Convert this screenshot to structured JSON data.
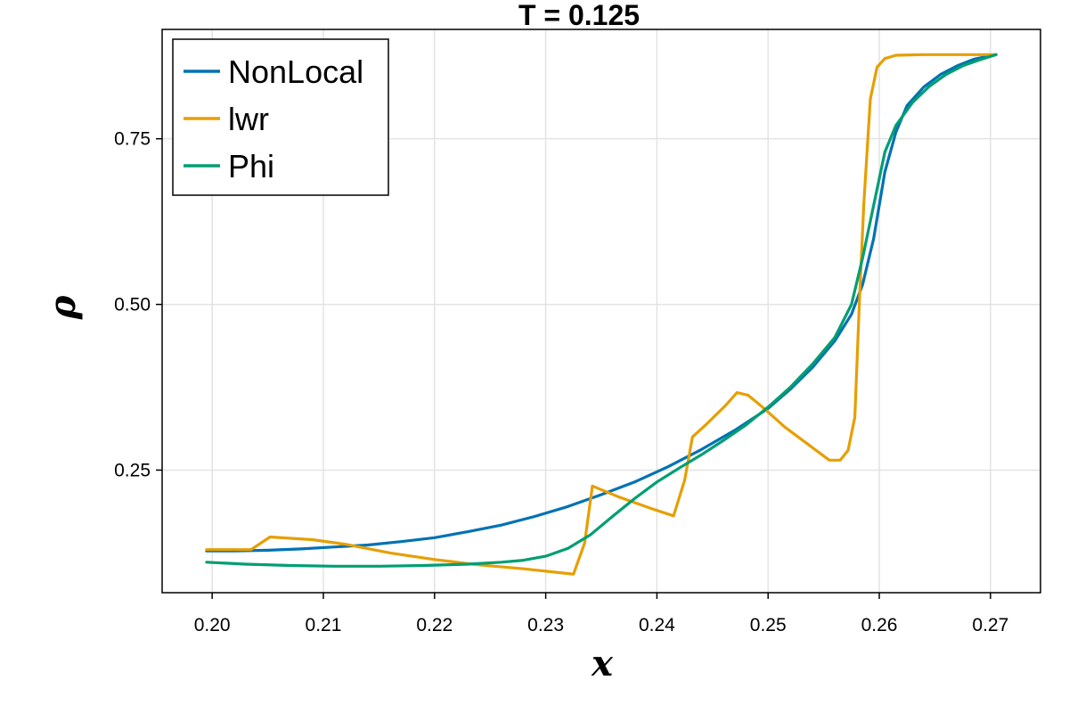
{
  "chart_data": {
    "type": "line",
    "title": "T = 0.125",
    "xlabel": "x",
    "ylabel": "ρ",
    "xlim": [
      0.1955,
      0.2745
    ],
    "ylim": [
      0.065,
      0.915
    ],
    "x_ticks": [
      {
        "value": 0.2,
        "label": "0.20"
      },
      {
        "value": 0.21,
        "label": "0.21"
      },
      {
        "value": 0.22,
        "label": "0.22"
      },
      {
        "value": 0.23,
        "label": "0.23"
      },
      {
        "value": 0.24,
        "label": "0.24"
      },
      {
        "value": 0.25,
        "label": "0.25"
      },
      {
        "value": 0.26,
        "label": "0.26"
      },
      {
        "value": 0.27,
        "label": "0.27"
      }
    ],
    "y_ticks": [
      {
        "value": 0.25,
        "label": "0.25"
      },
      {
        "value": 0.5,
        "label": "0.50"
      },
      {
        "value": 0.75,
        "label": "0.75"
      }
    ],
    "grid": true,
    "legend_position": "top-left",
    "series": [
      {
        "name": "NonLocal",
        "color": "#0072b2",
        "points": [
          [
            0.1995,
            0.128
          ],
          [
            0.202,
            0.128
          ],
          [
            0.205,
            0.129
          ],
          [
            0.208,
            0.131
          ],
          [
            0.211,
            0.134
          ],
          [
            0.214,
            0.137
          ],
          [
            0.217,
            0.142
          ],
          [
            0.22,
            0.148
          ],
          [
            0.223,
            0.157
          ],
          [
            0.226,
            0.167
          ],
          [
            0.229,
            0.18
          ],
          [
            0.232,
            0.195
          ],
          [
            0.235,
            0.213
          ],
          [
            0.238,
            0.232
          ],
          [
            0.241,
            0.255
          ],
          [
            0.244,
            0.281
          ],
          [
            0.247,
            0.31
          ],
          [
            0.25,
            0.343
          ],
          [
            0.252,
            0.372
          ],
          [
            0.254,
            0.405
          ],
          [
            0.256,
            0.445
          ],
          [
            0.2575,
            0.485
          ],
          [
            0.2585,
            0.53
          ],
          [
            0.2595,
            0.6
          ],
          [
            0.2605,
            0.7
          ],
          [
            0.2615,
            0.76
          ],
          [
            0.2625,
            0.8
          ],
          [
            0.264,
            0.828
          ],
          [
            0.2655,
            0.847
          ],
          [
            0.267,
            0.86
          ],
          [
            0.2685,
            0.87
          ],
          [
            0.2705,
            0.877
          ]
        ]
      },
      {
        "name": "lwr",
        "color": "#e69f00",
        "points": [
          [
            0.1995,
            0.13
          ],
          [
            0.2035,
            0.13
          ],
          [
            0.2052,
            0.149
          ],
          [
            0.209,
            0.145
          ],
          [
            0.212,
            0.138
          ],
          [
            0.216,
            0.125
          ],
          [
            0.22,
            0.115
          ],
          [
            0.224,
            0.107
          ],
          [
            0.228,
            0.101
          ],
          [
            0.2325,
            0.093
          ],
          [
            0.2335,
            0.14
          ],
          [
            0.2342,
            0.226
          ],
          [
            0.2365,
            0.21
          ],
          [
            0.2395,
            0.192
          ],
          [
            0.2415,
            0.181
          ],
          [
            0.2425,
            0.235
          ],
          [
            0.2432,
            0.3
          ],
          [
            0.2445,
            0.32
          ],
          [
            0.2462,
            0.348
          ],
          [
            0.2472,
            0.367
          ],
          [
            0.2482,
            0.363
          ],
          [
            0.2495,
            0.345
          ],
          [
            0.2515,
            0.315
          ],
          [
            0.2535,
            0.29
          ],
          [
            0.2555,
            0.265
          ],
          [
            0.2565,
            0.265
          ],
          [
            0.2572,
            0.28
          ],
          [
            0.2578,
            0.33
          ],
          [
            0.2582,
            0.5
          ],
          [
            0.2586,
            0.65
          ],
          [
            0.2592,
            0.81
          ],
          [
            0.2598,
            0.858
          ],
          [
            0.2605,
            0.871
          ],
          [
            0.2615,
            0.876
          ],
          [
            0.264,
            0.877
          ],
          [
            0.2705,
            0.877
          ]
        ]
      },
      {
        "name": "Phi",
        "color": "#009e73",
        "points": [
          [
            0.1995,
            0.111
          ],
          [
            0.203,
            0.108
          ],
          [
            0.207,
            0.106
          ],
          [
            0.211,
            0.105
          ],
          [
            0.215,
            0.105
          ],
          [
            0.219,
            0.106
          ],
          [
            0.223,
            0.108
          ],
          [
            0.226,
            0.111
          ],
          [
            0.228,
            0.114
          ],
          [
            0.23,
            0.12
          ],
          [
            0.232,
            0.132
          ],
          [
            0.234,
            0.152
          ],
          [
            0.236,
            0.18
          ],
          [
            0.238,
            0.207
          ],
          [
            0.24,
            0.232
          ],
          [
            0.242,
            0.253
          ],
          [
            0.244,
            0.273
          ],
          [
            0.246,
            0.295
          ],
          [
            0.248,
            0.318
          ],
          [
            0.25,
            0.345
          ],
          [
            0.252,
            0.375
          ],
          [
            0.254,
            0.41
          ],
          [
            0.256,
            0.45
          ],
          [
            0.2575,
            0.5
          ],
          [
            0.2585,
            0.57
          ],
          [
            0.2595,
            0.65
          ],
          [
            0.2605,
            0.73
          ],
          [
            0.2615,
            0.77
          ],
          [
            0.263,
            0.805
          ],
          [
            0.2645,
            0.829
          ],
          [
            0.266,
            0.847
          ],
          [
            0.2675,
            0.86
          ],
          [
            0.269,
            0.869
          ],
          [
            0.2705,
            0.877
          ]
        ]
      }
    ]
  }
}
